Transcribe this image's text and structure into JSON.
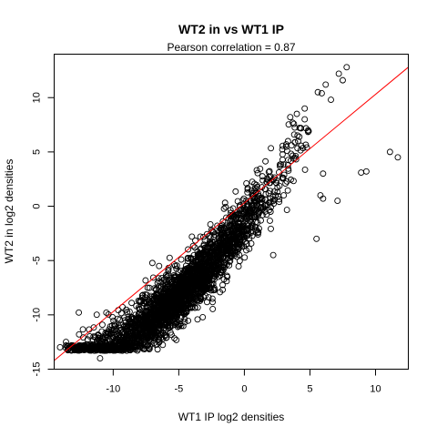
{
  "chart_data": {
    "type": "scatter",
    "title": "WT2 in vs WT1 IP",
    "subtitle": "Pearson correlation =  0.87",
    "xlabel": "WT1 IP log2 densities",
    "ylabel": "WT2 in log2 densities",
    "xlim": [
      -14.5,
      12.5
    ],
    "ylim": [
      -15,
      14
    ],
    "x_ticks": [
      -10,
      -5,
      0,
      5,
      10
    ],
    "y_ticks": [
      -15,
      -10,
      -5,
      0,
      5,
      10
    ],
    "grid": false,
    "point_color": "#000000",
    "fit_line": {
      "slope": 1.0,
      "intercept": 0.3,
      "color": "#ff0000"
    },
    "highlighted_points": [
      [
        7.8,
        12.8
      ],
      [
        7.2,
        12.2
      ],
      [
        7.5,
        11.6
      ],
      [
        6.2,
        11.2
      ],
      [
        5.6,
        10.5
      ],
      [
        5.9,
        10.4
      ],
      [
        6.6,
        9.8
      ],
      [
        4.6,
        9.0
      ],
      [
        4.0,
        8.5
      ],
      [
        4.6,
        8.0
      ],
      [
        3.5,
        8.2
      ],
      [
        4.3,
        7.2
      ],
      [
        3.8,
        6.6
      ],
      [
        4.9,
        6.9
      ],
      [
        4.1,
        6.0
      ],
      [
        3.6,
        5.6
      ],
      [
        11.1,
        5.0
      ],
      [
        11.7,
        4.5
      ],
      [
        8.9,
        3.1
      ],
      [
        9.3,
        3.2
      ],
      [
        6.0,
        3.0
      ],
      [
        5.8,
        1.0
      ],
      [
        7.1,
        0.5
      ],
      [
        6.0,
        0.7
      ],
      [
        5.5,
        -3.0
      ],
      [
        2.2,
        -4.5
      ],
      [
        -11.5,
        -12.0
      ],
      [
        -12.6,
        -11.8
      ],
      [
        -12.2,
        -12.8
      ],
      [
        -11.0,
        -14.0
      ],
      [
        -8.3,
        -10.0
      ],
      [
        -6.5,
        -5.5
      ],
      [
        -4.0,
        -2.8
      ]
    ],
    "density_band": {
      "x_start": -12.5,
      "x_end": 4.0,
      "n_points": 2800
    },
    "points_sample": [
      [
        -11.0,
        -12.0
      ],
      [
        -9.0,
        -11.5
      ],
      [
        -7.0,
        -10.0
      ],
      [
        -5.0,
        -8.5
      ],
      [
        -3.0,
        -6.5
      ],
      [
        -1.0,
        -4.5
      ],
      [
        0.0,
        -3.0
      ],
      [
        1.0,
        -1.5
      ],
      [
        2.0,
        -0.5
      ],
      [
        3.0,
        1.0
      ]
    ]
  }
}
